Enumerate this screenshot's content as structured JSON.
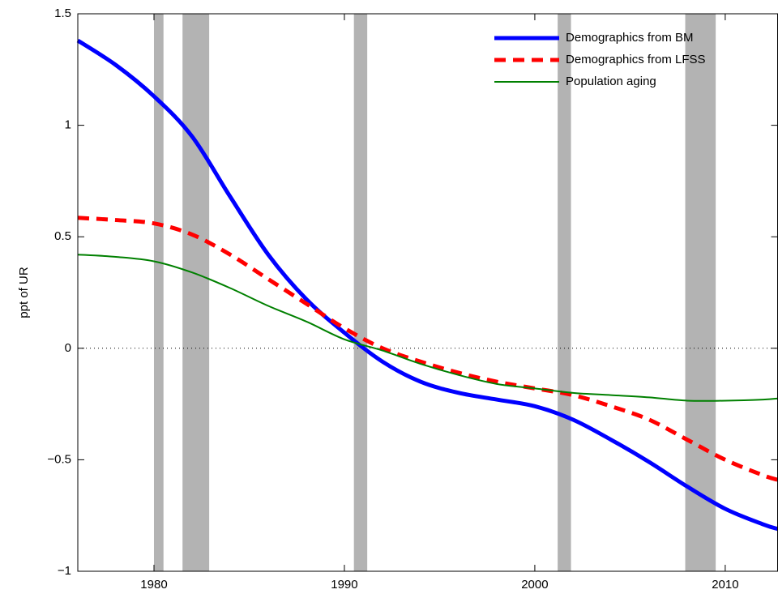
{
  "chart_data": {
    "type": "line",
    "ylabel": "ppt of UR",
    "xlim": [
      1976,
      2012.75
    ],
    "ylim": [
      -1,
      1.5
    ],
    "xticks": [
      1980,
      1990,
      2000,
      2010
    ],
    "yticks": [
      {
        "value": -1,
        "label": "−1"
      },
      {
        "value": -0.5,
        "label": "−0.5"
      },
      0,
      0.5,
      1,
      1.5
    ],
    "legend": "upper right",
    "shaded_periods": [
      [
        1980,
        1980.5
      ],
      [
        1981.5,
        1982.9
      ],
      [
        1990.5,
        1991.2
      ],
      [
        2001.2,
        2001.9
      ],
      [
        2007.9,
        2009.5
      ]
    ],
    "shade_color": "#b3b3b3",
    "x": [
      1976,
      1978,
      1980,
      1982,
      1984,
      1986,
      1988,
      1990,
      1992,
      1994,
      1996,
      1998,
      2000,
      2002,
      2004,
      2006,
      2008,
      2010,
      2012,
      2012.75
    ],
    "series": [
      {
        "name": "Demographics from BM",
        "color": "#0000ff",
        "style": "solid",
        "width": 5,
        "values": [
          1.38,
          1.27,
          1.13,
          0.95,
          0.68,
          0.42,
          0.22,
          0.07,
          -0.06,
          -0.15,
          -0.2,
          -0.23,
          -0.26,
          -0.32,
          -0.41,
          -0.51,
          -0.62,
          -0.72,
          -0.79,
          -0.81
        ]
      },
      {
        "name": "Demographics from LFSS",
        "color": "#ff0000",
        "style": "dashed",
        "width": 5,
        "values": [
          0.585,
          0.575,
          0.56,
          0.51,
          0.42,
          0.31,
          0.2,
          0.09,
          0.0,
          -0.06,
          -0.11,
          -0.15,
          -0.18,
          -0.21,
          -0.26,
          -0.32,
          -0.41,
          -0.5,
          -0.57,
          -0.59
        ]
      },
      {
        "name": "Population aging",
        "color": "#008000",
        "style": "solid",
        "width": 2,
        "values": [
          0.42,
          0.41,
          0.39,
          0.34,
          0.27,
          0.19,
          0.12,
          0.04,
          -0.01,
          -0.07,
          -0.12,
          -0.16,
          -0.18,
          -0.2,
          -0.21,
          -0.22,
          -0.235,
          -0.235,
          -0.23,
          -0.225
        ]
      }
    ]
  }
}
